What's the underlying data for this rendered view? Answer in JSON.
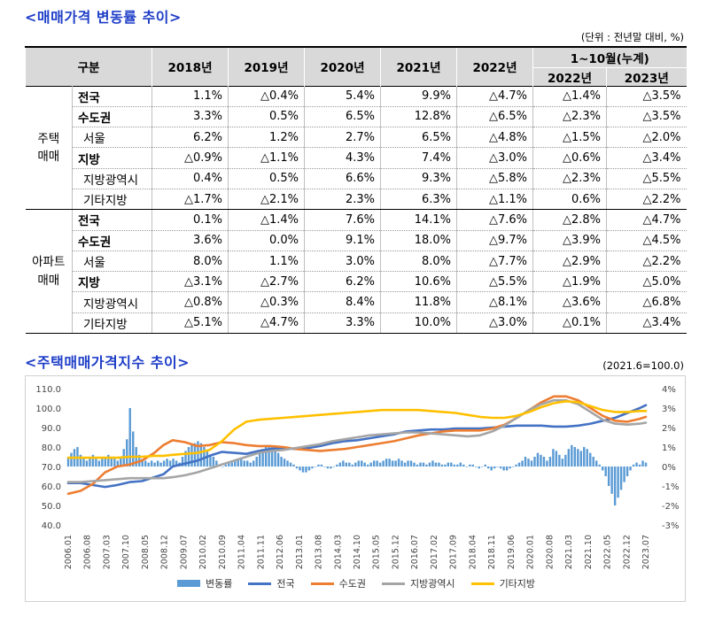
{
  "titles": {
    "table_title": "<매매가격 변동률 추이>",
    "chart_title": "<주택매매가격지수 추이>",
    "table_unit": "(단위 : 전년말 대비, %)",
    "chart_unit": "(2021.6=100.0)"
  },
  "table": {
    "header": {
      "category": "구분",
      "years": [
        "2018년",
        "2019년",
        "2020년",
        "2021년",
        "2022년"
      ],
      "cumulative": "1~10월(누계)",
      "cum_years": [
        "2022년",
        "2023년"
      ]
    },
    "groups": [
      {
        "name_line1": "주택",
        "name_line2": "매매",
        "rows": [
          {
            "label": "전국",
            "values": [
              "1.1%",
              "△0.4%",
              "5.4%",
              "9.9%",
              "△4.7%",
              "△1.4%",
              "△3.5%"
            ]
          },
          {
            "label": "수도권",
            "values": [
              "3.3%",
              "0.5%",
              "6.5%",
              "12.8%",
              "△6.5%",
              "△2.3%",
              "△3.5%"
            ]
          },
          {
            "label": "서울",
            "values": [
              "6.2%",
              "1.2%",
              "2.7%",
              "6.5%",
              "△4.8%",
              "△1.5%",
              "△2.0%"
            ]
          },
          {
            "label": "지방",
            "values": [
              "△0.9%",
              "△1.1%",
              "4.3%",
              "7.4%",
              "△3.0%",
              "△0.6%",
              "△3.4%"
            ]
          },
          {
            "label": "지방광역시",
            "values": [
              "0.4%",
              "0.5%",
              "6.6%",
              "9.3%",
              "△5.8%",
              "△2.3%",
              "△5.5%"
            ]
          },
          {
            "label": "기타지방",
            "values": [
              "△1.7%",
              "△2.1%",
              "2.3%",
              "6.3%",
              "△1.1%",
              "0.6%",
              "△2.2%"
            ]
          }
        ]
      },
      {
        "name_line1": "아파트",
        "name_line2": "매매",
        "rows": [
          {
            "label": "전국",
            "values": [
              "0.1%",
              "△1.4%",
              "7.6%",
              "14.1%",
              "△7.6%",
              "△2.8%",
              "△4.7%"
            ]
          },
          {
            "label": "수도권",
            "values": [
              "3.6%",
              "0.0%",
              "9.1%",
              "18.0%",
              "△9.7%",
              "△3.9%",
              "△4.5%"
            ]
          },
          {
            "label": "서울",
            "values": [
              "8.0%",
              "1.1%",
              "3.0%",
              "8.0%",
              "△7.7%",
              "△2.9%",
              "△2.2%"
            ]
          },
          {
            "label": "지방",
            "values": [
              "△3.1%",
              "△2.7%",
              "6.2%",
              "10.6%",
              "△5.5%",
              "△1.9%",
              "△5.0%"
            ]
          },
          {
            "label": "지방광역시",
            "values": [
              "△0.8%",
              "△0.3%",
              "8.4%",
              "11.8%",
              "△8.1%",
              "△3.6%",
              "△6.8%"
            ]
          },
          {
            "label": "기타지방",
            "values": [
              "△5.1%",
              "△4.7%",
              "3.3%",
              "10.0%",
              "△3.0%",
              "△0.1%",
              "△3.4%"
            ]
          }
        ]
      }
    ]
  },
  "chart_data": {
    "type": "line",
    "title": "<주택매매가격지수 추이>",
    "subtitle": "(2021.6=100.0)",
    "x_tick_labels": [
      "2006.01",
      "2006.08",
      "2007.03",
      "2007.10",
      "2008.05",
      "2008.12",
      "2009.07",
      "2010.02",
      "2010.09",
      "2011.04",
      "2011.11",
      "2012.06",
      "2013.01",
      "2013.08",
      "2014.03",
      "2014.10",
      "2015.05",
      "2015.12",
      "2016.07",
      "2017.02",
      "2017.09",
      "2018.04",
      "2018.11",
      "2019.06",
      "2020.01",
      "2020.08",
      "2021.03",
      "2021.10",
      "2022.05",
      "2022.12",
      "2023.07"
    ],
    "y_left": {
      "ticks": [
        "110.0",
        "100.0",
        "90.0",
        "80.0",
        "70.0",
        "60.0",
        "50.0",
        "40.0"
      ],
      "range": [
        40,
        110
      ]
    },
    "y_right": {
      "ticks": [
        "4%",
        "3%",
        "2%",
        "1%",
        "0%",
        "-1%",
        "-2%",
        "-3%"
      ],
      "range": [
        -3,
        4
      ]
    },
    "legend_position": "bottom",
    "series": [
      {
        "name": "전국",
        "color": "#4472c4",
        "axis": "left",
        "points": [
          [
            0,
            61.5
          ],
          [
            4,
            61.5
          ],
          [
            8,
            60.5
          ],
          [
            12,
            59.5
          ],
          [
            16,
            60.5
          ],
          [
            20,
            62
          ],
          [
            24,
            62.5
          ],
          [
            28,
            64.5
          ],
          [
            31,
            66
          ],
          [
            34,
            70
          ],
          [
            38,
            71.5
          ],
          [
            42,
            73
          ],
          [
            46,
            75.5
          ],
          [
            50,
            77.5
          ],
          [
            54,
            77
          ],
          [
            58,
            76.5
          ],
          [
            62,
            78
          ],
          [
            66,
            79
          ],
          [
            70,
            79.5
          ],
          [
            74,
            79
          ],
          [
            78,
            79.5
          ],
          [
            82,
            80.5
          ],
          [
            86,
            82
          ],
          [
            90,
            83
          ],
          [
            94,
            83.5
          ],
          [
            98,
            84.5
          ],
          [
            102,
            85.5
          ],
          [
            106,
            86.5
          ],
          [
            110,
            88
          ],
          [
            114,
            88.5
          ],
          [
            118,
            89
          ],
          [
            122,
            89
          ],
          [
            126,
            89.5
          ],
          [
            130,
            89.5
          ],
          [
            134,
            89.5
          ],
          [
            138,
            90
          ],
          [
            142,
            90.5
          ],
          [
            146,
            91
          ],
          [
            150,
            91
          ],
          [
            154,
            91
          ],
          [
            158,
            90.5
          ],
          [
            162,
            90.5
          ],
          [
            166,
            91
          ],
          [
            170,
            92
          ],
          [
            174,
            93.5
          ],
          [
            178,
            95
          ],
          [
            182,
            97.5
          ],
          [
            186,
            100
          ],
          [
            188,
            101.5
          ]
        ]
      },
      {
        "name": "수도권",
        "color": "#ed7d31",
        "axis": "left",
        "points": [
          [
            0,
            56
          ],
          [
            4,
            57.5
          ],
          [
            8,
            61
          ],
          [
            12,
            67
          ],
          [
            16,
            70
          ],
          [
            20,
            71
          ],
          [
            24,
            73
          ],
          [
            28,
            77
          ],
          [
            31,
            81
          ],
          [
            34,
            83.5
          ],
          [
            38,
            82.5
          ],
          [
            42,
            80.5
          ],
          [
            46,
            81
          ],
          [
            50,
            82.5
          ],
          [
            54,
            82
          ],
          [
            58,
            81
          ],
          [
            62,
            80.5
          ],
          [
            66,
            80.5
          ],
          [
            70,
            80
          ],
          [
            74,
            79
          ],
          [
            78,
            78.5
          ],
          [
            82,
            78
          ],
          [
            86,
            78.5
          ],
          [
            90,
            79
          ],
          [
            94,
            80
          ],
          [
            98,
            81
          ],
          [
            102,
            82
          ],
          [
            106,
            83
          ],
          [
            110,
            84.5
          ],
          [
            114,
            86
          ],
          [
            118,
            87
          ],
          [
            122,
            88
          ],
          [
            126,
            88.5
          ],
          [
            130,
            88.5
          ],
          [
            134,
            88.5
          ],
          [
            138,
            89.5
          ],
          [
            142,
            91.5
          ],
          [
            146,
            95
          ],
          [
            150,
            99
          ],
          [
            154,
            103
          ],
          [
            158,
            106
          ],
          [
            162,
            106
          ],
          [
            166,
            104
          ],
          [
            170,
            100
          ],
          [
            174,
            96
          ],
          [
            178,
            93.5
          ],
          [
            182,
            93
          ],
          [
            186,
            94.5
          ],
          [
            188,
            95.5
          ]
        ]
      },
      {
        "name": "지방광역시",
        "color": "#a5a5a5",
        "axis": "left",
        "points": [
          [
            0,
            62
          ],
          [
            4,
            62
          ],
          [
            8,
            62.5
          ],
          [
            12,
            63
          ],
          [
            16,
            63.5
          ],
          [
            20,
            64
          ],
          [
            24,
            64
          ],
          [
            28,
            64
          ],
          [
            31,
            64
          ],
          [
            34,
            64.5
          ],
          [
            38,
            65.5
          ],
          [
            42,
            67
          ],
          [
            46,
            69
          ],
          [
            50,
            71
          ],
          [
            54,
            73
          ],
          [
            58,
            75
          ],
          [
            62,
            77
          ],
          [
            66,
            78
          ],
          [
            70,
            78.5
          ],
          [
            74,
            79.5
          ],
          [
            78,
            80.5
          ],
          [
            82,
            81.5
          ],
          [
            86,
            83
          ],
          [
            90,
            84
          ],
          [
            94,
            85
          ],
          [
            98,
            86
          ],
          [
            102,
            86.5
          ],
          [
            106,
            87
          ],
          [
            110,
            87.5
          ],
          [
            114,
            87.5
          ],
          [
            118,
            87
          ],
          [
            122,
            86.5
          ],
          [
            126,
            86
          ],
          [
            130,
            85.5
          ],
          [
            134,
            86
          ],
          [
            138,
            88
          ],
          [
            142,
            91
          ],
          [
            146,
            95
          ],
          [
            150,
            99
          ],
          [
            154,
            102
          ],
          [
            158,
            104
          ],
          [
            162,
            104
          ],
          [
            166,
            102
          ],
          [
            170,
            98
          ],
          [
            174,
            94
          ],
          [
            178,
            92
          ],
          [
            182,
            91.5
          ],
          [
            186,
            92
          ],
          [
            188,
            92.5
          ]
        ]
      },
      {
        "name": "기타지방",
        "color": "#ffc000",
        "axis": "left",
        "points": [
          [
            0,
            74.5
          ],
          [
            4,
            74.5
          ],
          [
            8,
            74.5
          ],
          [
            12,
            74.5
          ],
          [
            16,
            74.5
          ],
          [
            20,
            75
          ],
          [
            24,
            75
          ],
          [
            28,
            75.5
          ],
          [
            31,
            75.5
          ],
          [
            34,
            76
          ],
          [
            38,
            76.5
          ],
          [
            42,
            77
          ],
          [
            46,
            78.5
          ],
          [
            50,
            83
          ],
          [
            54,
            89
          ],
          [
            58,
            93
          ],
          [
            62,
            94
          ],
          [
            66,
            94.5
          ],
          [
            70,
            95
          ],
          [
            74,
            95.5
          ],
          [
            78,
            96
          ],
          [
            82,
            96.5
          ],
          [
            86,
            97
          ],
          [
            90,
            97.5
          ],
          [
            94,
            98
          ],
          [
            98,
            98.5
          ],
          [
            102,
            99
          ],
          [
            106,
            99
          ],
          [
            110,
            99
          ],
          [
            114,
            99
          ],
          [
            118,
            98.5
          ],
          [
            122,
            98
          ],
          [
            126,
            97.5
          ],
          [
            130,
            96.5
          ],
          [
            134,
            95.5
          ],
          [
            138,
            95
          ],
          [
            142,
            95
          ],
          [
            146,
            96
          ],
          [
            150,
            98
          ],
          [
            154,
            100.5
          ],
          [
            158,
            102.5
          ],
          [
            162,
            103.5
          ],
          [
            166,
            103
          ],
          [
            170,
            101
          ],
          [
            174,
            99
          ],
          [
            178,
            98
          ],
          [
            182,
            98
          ],
          [
            186,
            98.5
          ],
          [
            188,
            98.5
          ]
        ]
      }
    ],
    "bar_series": {
      "name": "변동률",
      "color": "#5b9bd5",
      "axis": "right",
      "values": [
        0.5,
        0.7,
        0.9,
        1.0,
        0.6,
        0.4,
        0.3,
        0.5,
        0.6,
        0.4,
        0.3,
        0.4,
        0.5,
        0.6,
        0.5,
        0.4,
        0.3,
        0.5,
        0.9,
        1.4,
        3.0,
        1.8,
        1.0,
        0.6,
        0.4,
        0.3,
        0.2,
        0.3,
        0.2,
        0.3,
        0.2,
        0.3,
        0.4,
        0.3,
        0.4,
        0.3,
        0.2,
        0.5,
        0.8,
        1.0,
        1.1,
        1.2,
        1.3,
        1.2,
        1.0,
        0.8,
        0.6,
        0.5,
        0.3,
        0.1,
        0.0,
        0.1,
        0.2,
        0.2,
        0.3,
        0.4,
        0.4,
        0.3,
        0.3,
        0.2,
        0.3,
        0.5,
        0.7,
        0.9,
        1.1,
        1.1,
        1.0,
        0.9,
        0.7,
        0.5,
        0.4,
        0.3,
        0.2,
        0.1,
        -0.1,
        -0.2,
        -0.3,
        -0.3,
        -0.2,
        -0.1,
        0.0,
        0.1,
        0.1,
        0.0,
        -0.1,
        -0.1,
        0.0,
        0.1,
        0.2,
        0.3,
        0.2,
        0.2,
        0.1,
        0.2,
        0.3,
        0.3,
        0.2,
        0.1,
        0.2,
        0.3,
        0.3,
        0.2,
        0.3,
        0.4,
        0.4,
        0.3,
        0.3,
        0.4,
        0.3,
        0.2,
        0.3,
        0.3,
        0.2,
        0.1,
        0.2,
        0.2,
        0.1,
        0.2,
        0.3,
        0.2,
        0.2,
        0.1,
        0.1,
        0.2,
        0.2,
        0.1,
        0.1,
        0.2,
        0.1,
        0.0,
        0.1,
        0.1,
        0.0,
        -0.1,
        0.0,
        0.1,
        -0.1,
        -0.2,
        -0.1,
        0.0,
        -0.1,
        -0.2,
        -0.2,
        -0.1,
        0.0,
        0.1,
        0.2,
        0.3,
        0.5,
        0.4,
        0.3,
        0.5,
        0.7,
        0.6,
        0.5,
        0.3,
        0.5,
        0.9,
        0.8,
        0.6,
        0.4,
        0.6,
        0.9,
        1.1,
        1.0,
        0.9,
        0.8,
        1.0,
        0.9,
        0.7,
        0.5,
        0.3,
        0.1,
        -0.2,
        -0.5,
        -1.0,
        -1.4,
        -2.0,
        -1.6,
        -1.2,
        -0.8,
        -0.5,
        -0.2,
        0.1,
        0.2,
        0.1,
        0.3,
        0.2
      ]
    }
  }
}
